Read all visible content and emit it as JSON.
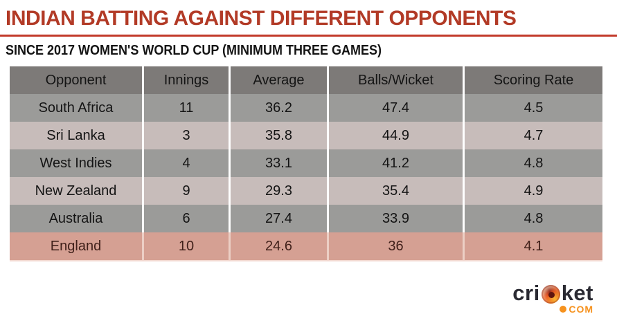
{
  "header": {
    "title": "INDIAN BATTING AGAINST DIFFERENT OPPONENTS",
    "subtitle": "SINCE 2017 WOMEN'S WORLD CUP (MINIMUM THREE GAMES)"
  },
  "chart_data": {
    "type": "table",
    "title": "INDIAN BATTING AGAINST DIFFERENT OPPONENTS",
    "subtitle": "SINCE 2017 WOMEN'S WORLD CUP (MINIMUM THREE GAMES)",
    "columns": [
      "Opponent",
      "Innings",
      "Average",
      "Balls/Wicket",
      "Scoring Rate"
    ],
    "rows": [
      {
        "cells": [
          "South Africa",
          "11",
          "36.2",
          "47.4",
          "4.5"
        ]
      },
      {
        "cells": [
          "Sri Lanka",
          "3",
          "35.8",
          "44.9",
          "4.7"
        ]
      },
      {
        "cells": [
          "West Indies",
          "4",
          "33.1",
          "41.2",
          "4.8"
        ]
      },
      {
        "cells": [
          "New Zealand",
          "9",
          "29.3",
          "35.4",
          "4.9"
        ]
      },
      {
        "cells": [
          "Australia",
          "6",
          "27.4",
          "33.9",
          "4.8"
        ]
      },
      {
        "cells": [
          "England",
          "10",
          "24.6",
          "36",
          "4.1"
        ]
      }
    ],
    "highlighted_row": "England",
    "layout": {
      "grid": false,
      "legend": "none"
    }
  },
  "logo": {
    "brand_prefix": "cri",
    "ball_letter": "c",
    "brand_suffix": "ket",
    "tld": "COM"
  },
  "colors": {
    "title_red": "#b23a26",
    "divider_red": "#c2392a",
    "header_bg": "#7d7a78",
    "row_gray": "#9b9b99",
    "row_pink": "#c7bcba",
    "highlight_bg": "#d5a093",
    "highlight_text": "#40201a",
    "text_dark": "#141414",
    "separator": "#ffffff",
    "logo_dark": "#2a2a32",
    "logo_orange": "#f6921e"
  }
}
